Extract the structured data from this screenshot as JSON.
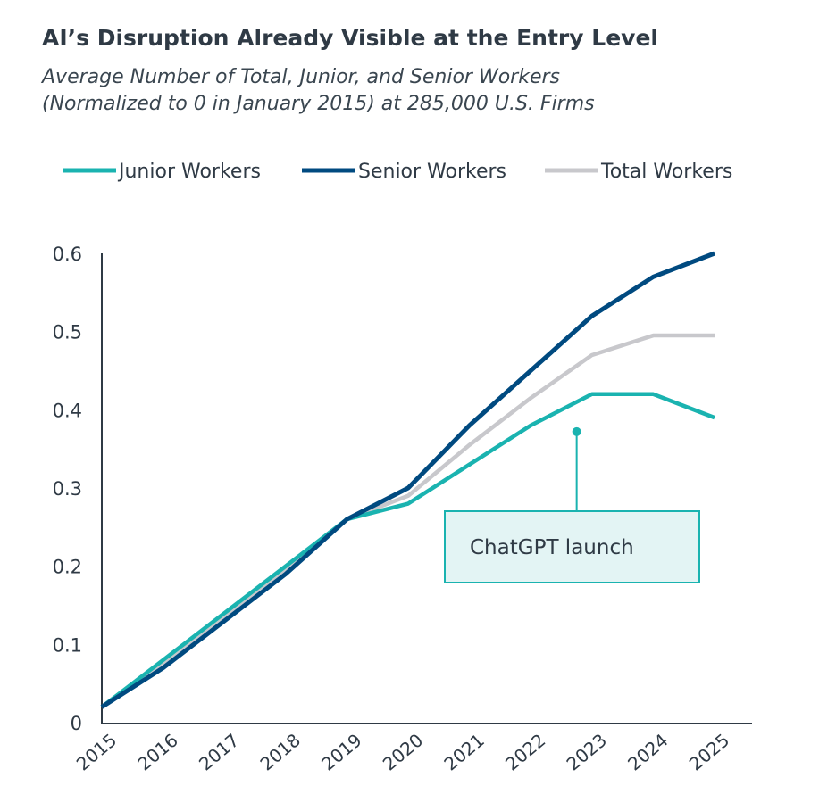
{
  "chart_data": {
    "type": "line",
    "title": "AI’s Disruption Already Visible at the Entry Level",
    "subtitle_lines": [
      "Average Number of Total, Junior, and Senior Workers",
      "(Normalized to 0 in January 2015) at 285,000 U.S. Firms"
    ],
    "x": [
      "2015",
      "2016",
      "2017",
      "2018",
      "2019",
      "2020",
      "2021",
      "2022",
      "2023",
      "2024",
      "2025"
    ],
    "yticks": [
      "0",
      "0.1",
      "0.2",
      "0.3",
      "0.4",
      "0.5",
      "0.6"
    ],
    "ylim": [
      0,
      0.6
    ],
    "grid": false,
    "legend": "top",
    "series": [
      {
        "name": "Junior Workers",
        "color": "#1ab3b0",
        "values": [
          0.02,
          0.08,
          0.14,
          0.2,
          0.26,
          0.28,
          0.33,
          0.38,
          0.42,
          0.42,
          0.39
        ]
      },
      {
        "name": "Senior Workers",
        "color": "#004a80",
        "values": [
          0.02,
          0.07,
          0.13,
          0.19,
          0.26,
          0.3,
          0.38,
          0.45,
          0.52,
          0.57,
          0.6
        ]
      },
      {
        "name": "Total Workers",
        "color": "#c8c8cc",
        "values": [
          0.02,
          0.075,
          0.135,
          0.195,
          0.26,
          0.29,
          0.355,
          0.415,
          0.47,
          0.495,
          0.495
        ]
      }
    ],
    "annotation": {
      "text": "ChatGPT launch",
      "x": 2022.75,
      "y": 0.372,
      "color": "#1ab3b0",
      "fill": "#e3f4f4"
    }
  }
}
